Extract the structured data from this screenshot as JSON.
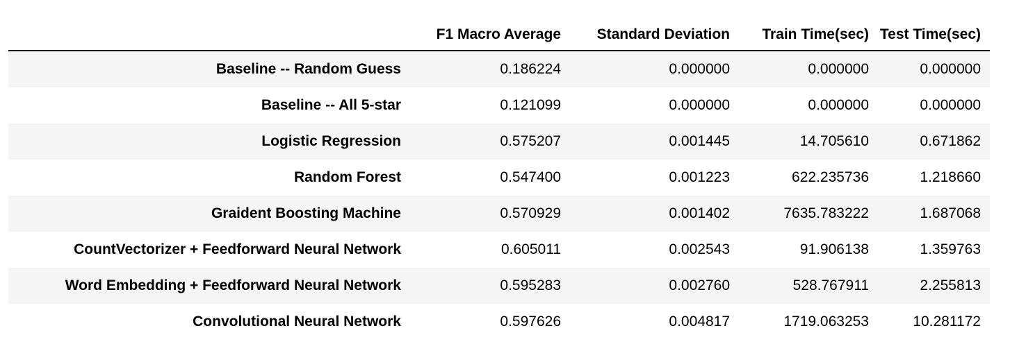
{
  "table": {
    "columns": [
      "",
      "F1 Macro Average",
      "Standard Deviation",
      "Train Time(sec)",
      "Test Time(sec)"
    ],
    "rows": [
      {
        "label": "Baseline -- Random Guess",
        "values": [
          "0.186224",
          "0.000000",
          "0.000000",
          "0.000000"
        ]
      },
      {
        "label": "Baseline -- All 5-star",
        "values": [
          "0.121099",
          "0.000000",
          "0.000000",
          "0.000000"
        ]
      },
      {
        "label": "Logistic Regression",
        "values": [
          "0.575207",
          "0.001445",
          "14.705610",
          "0.671862"
        ]
      },
      {
        "label": "Random Forest",
        "values": [
          "0.547400",
          "0.001223",
          "622.235736",
          "1.218660"
        ]
      },
      {
        "label": "Graident Boosting Machine",
        "values": [
          "0.570929",
          "0.001402",
          "7635.783222",
          "1.687068"
        ]
      },
      {
        "label": "CountVectorizer + Feedforward Neural Network",
        "values": [
          "0.605011",
          "0.002543",
          "91.906138",
          "1.359763"
        ]
      },
      {
        "label": "Word Embedding + Feedforward Neural Network",
        "values": [
          "0.595283",
          "0.002760",
          "528.767911",
          "2.255813"
        ]
      },
      {
        "label": "Convolutional Neural Network",
        "values": [
          "0.597626",
          "0.004817",
          "1719.063253",
          "10.281172"
        ]
      }
    ]
  }
}
